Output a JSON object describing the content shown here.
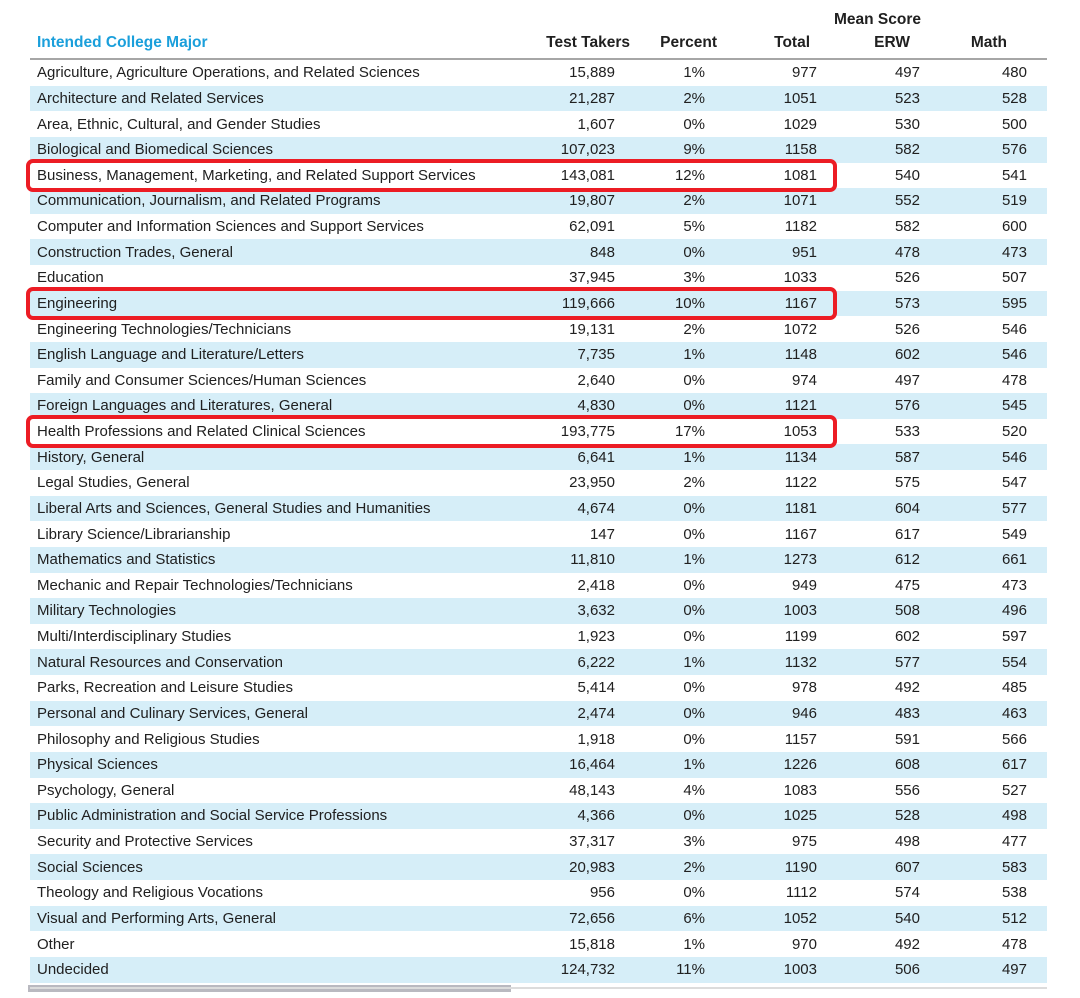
{
  "table": {
    "major_header": "Intended College Major",
    "group_header": "Mean Score",
    "columns": [
      "Test Takers",
      "Percent",
      "Total",
      "ERW",
      "Math"
    ],
    "rows": [
      {
        "major": "Agriculture, Agriculture Operations, and Related Sciences",
        "test_takers": "15,889",
        "percent": "1%",
        "total": "977",
        "erw": "497",
        "math": "480",
        "highlighted": false
      },
      {
        "major": "Architecture and Related Services",
        "test_takers": "21,287",
        "percent": "2%",
        "total": "1051",
        "erw": "523",
        "math": "528",
        "highlighted": false
      },
      {
        "major": "Area, Ethnic, Cultural, and Gender Studies",
        "test_takers": "1,607",
        "percent": "0%",
        "total": "1029",
        "erw": "530",
        "math": "500",
        "highlighted": false
      },
      {
        "major": "Biological and Biomedical Sciences",
        "test_takers": "107,023",
        "percent": "9%",
        "total": "1158",
        "erw": "582",
        "math": "576",
        "highlighted": false
      },
      {
        "major": "Business, Management, Marketing, and Related Support Services",
        "test_takers": "143,081",
        "percent": "12%",
        "total": "1081",
        "erw": "540",
        "math": "541",
        "highlighted": true
      },
      {
        "major": "Communication, Journalism, and Related Programs",
        "test_takers": "19,807",
        "percent": "2%",
        "total": "1071",
        "erw": "552",
        "math": "519",
        "highlighted": false
      },
      {
        "major": "Computer and Information Sciences and Support Services",
        "test_takers": "62,091",
        "percent": "5%",
        "total": "1182",
        "erw": "582",
        "math": "600",
        "highlighted": false
      },
      {
        "major": "Construction Trades, General",
        "test_takers": "848",
        "percent": "0%",
        "total": "951",
        "erw": "478",
        "math": "473",
        "highlighted": false
      },
      {
        "major": "Education",
        "test_takers": "37,945",
        "percent": "3%",
        "total": "1033",
        "erw": "526",
        "math": "507",
        "highlighted": false
      },
      {
        "major": "Engineering",
        "test_takers": "119,666",
        "percent": "10%",
        "total": "1167",
        "erw": "573",
        "math": "595",
        "highlighted": true
      },
      {
        "major": "Engineering Technologies/Technicians",
        "test_takers": "19,131",
        "percent": "2%",
        "total": "1072",
        "erw": "526",
        "math": "546",
        "highlighted": false
      },
      {
        "major": "English Language and Literature/Letters",
        "test_takers": "7,735",
        "percent": "1%",
        "total": "1148",
        "erw": "602",
        "math": "546",
        "highlighted": false
      },
      {
        "major": "Family and Consumer Sciences/Human Sciences",
        "test_takers": "2,640",
        "percent": "0%",
        "total": "974",
        "erw": "497",
        "math": "478",
        "highlighted": false
      },
      {
        "major": "Foreign Languages and Literatures, General",
        "test_takers": "4,830",
        "percent": "0%",
        "total": "1121",
        "erw": "576",
        "math": "545",
        "highlighted": false
      },
      {
        "major": "Health Professions and Related Clinical Sciences",
        "test_takers": "193,775",
        "percent": "17%",
        "total": "1053",
        "erw": "533",
        "math": "520",
        "highlighted": true
      },
      {
        "major": "History, General",
        "test_takers": "6,641",
        "percent": "1%",
        "total": "1134",
        "erw": "587",
        "math": "546",
        "highlighted": false
      },
      {
        "major": "Legal Studies, General",
        "test_takers": "23,950",
        "percent": "2%",
        "total": "1122",
        "erw": "575",
        "math": "547",
        "highlighted": false
      },
      {
        "major": "Liberal Arts and Sciences, General Studies and Humanities",
        "test_takers": "4,674",
        "percent": "0%",
        "total": "1181",
        "erw": "604",
        "math": "577",
        "highlighted": false
      },
      {
        "major": "Library Science/Librarianship",
        "test_takers": "147",
        "percent": "0%",
        "total": "1167",
        "erw": "617",
        "math": "549",
        "highlighted": false
      },
      {
        "major": "Mathematics and Statistics",
        "test_takers": "11,810",
        "percent": "1%",
        "total": "1273",
        "erw": "612",
        "math": "661",
        "highlighted": false
      },
      {
        "major": "Mechanic and Repair Technologies/Technicians",
        "test_takers": "2,418",
        "percent": "0%",
        "total": "949",
        "erw": "475",
        "math": "473",
        "highlighted": false
      },
      {
        "major": "Military Technologies",
        "test_takers": "3,632",
        "percent": "0%",
        "total": "1003",
        "erw": "508",
        "math": "496",
        "highlighted": false
      },
      {
        "major": "Multi/Interdisciplinary Studies",
        "test_takers": "1,923",
        "percent": "0%",
        "total": "1199",
        "erw": "602",
        "math": "597",
        "highlighted": false
      },
      {
        "major": "Natural Resources and Conservation",
        "test_takers": "6,222",
        "percent": "1%",
        "total": "1132",
        "erw": "577",
        "math": "554",
        "highlighted": false
      },
      {
        "major": "Parks, Recreation and Leisure Studies",
        "test_takers": "5,414",
        "percent": "0%",
        "total": "978",
        "erw": "492",
        "math": "485",
        "highlighted": false
      },
      {
        "major": "Personal and Culinary Services, General",
        "test_takers": "2,474",
        "percent": "0%",
        "total": "946",
        "erw": "483",
        "math": "463",
        "highlighted": false
      },
      {
        "major": "Philosophy and Religious Studies",
        "test_takers": "1,918",
        "percent": "0%",
        "total": "1157",
        "erw": "591",
        "math": "566",
        "highlighted": false
      },
      {
        "major": "Physical Sciences",
        "test_takers": "16,464",
        "percent": "1%",
        "total": "1226",
        "erw": "608",
        "math": "617",
        "highlighted": false
      },
      {
        "major": "Psychology, General",
        "test_takers": "48,143",
        "percent": "4%",
        "total": "1083",
        "erw": "556",
        "math": "527",
        "highlighted": false
      },
      {
        "major": "Public Administration and Social Service Professions",
        "test_takers": "4,366",
        "percent": "0%",
        "total": "1025",
        "erw": "528",
        "math": "498",
        "highlighted": false
      },
      {
        "major": "Security and Protective Services",
        "test_takers": "37,317",
        "percent": "3%",
        "total": "975",
        "erw": "498",
        "math": "477",
        "highlighted": false
      },
      {
        "major": "Social Sciences",
        "test_takers": "20,983",
        "percent": "2%",
        "total": "1190",
        "erw": "607",
        "math": "583",
        "highlighted": false
      },
      {
        "major": "Theology and Religious Vocations",
        "test_takers": "956",
        "percent": "0%",
        "total": "1112",
        "erw": "574",
        "math": "538",
        "highlighted": false
      },
      {
        "major": "Visual and Performing Arts, General",
        "test_takers": "72,656",
        "percent": "6%",
        "total": "1052",
        "erw": "540",
        "math": "512",
        "highlighted": false
      },
      {
        "major": "Other",
        "test_takers": "15,818",
        "percent": "1%",
        "total": "970",
        "erw": "492",
        "math": "478",
        "highlighted": false
      },
      {
        "major": "Undecided",
        "test_takers": "124,732",
        "percent": "11%",
        "total": "1003",
        "erw": "506",
        "math": "497",
        "highlighted": true,
        "highlighted_override": false
      }
    ]
  },
  "colors": {
    "accent_blue": "#1a9fdb",
    "row_stripe": "#d6eef8",
    "highlight_red": "#ec1c24"
  }
}
